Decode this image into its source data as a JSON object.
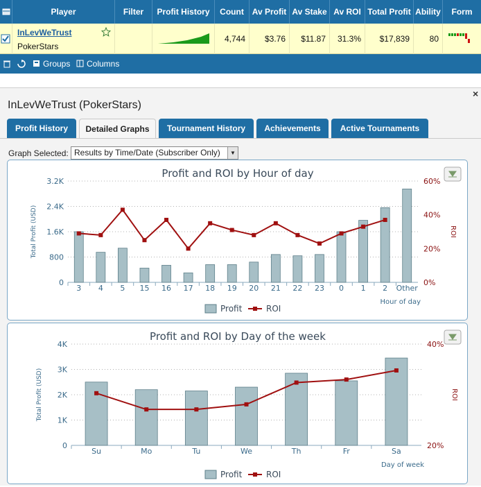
{
  "grid": {
    "headers": [
      "Player",
      "Filter",
      "Profit History",
      "Count",
      "Av Profit",
      "Av Stake",
      "Av ROI",
      "Total Profit",
      "Ability",
      "Form"
    ],
    "row": {
      "player_name": "InLevWeTrust",
      "network": "PokerStars",
      "count": "4,744",
      "av_profit": "$3.76",
      "av_stake": "$11.87",
      "av_roi": "31.3%",
      "total_profit": "$17,839",
      "ability": "80"
    },
    "toolbar": {
      "groups_label": "Groups",
      "columns_label": "Columns"
    }
  },
  "panel": {
    "title": "InLevWeTrust (PokerStars)",
    "close_symbol": "×",
    "tabs": [
      "Profit History",
      "Detailed Graphs",
      "Tournament History",
      "Achievements",
      "Active Tournaments"
    ],
    "graph_selected_label": "Graph Selected:",
    "graph_selected_value": "Results by Time/Date (Subscriber Only)"
  },
  "colors": {
    "header_blue": "#1f6ea4",
    "bar_fill": "#a7bfc6",
    "roi_line": "#a01010",
    "row_highlight": "#ffffcc"
  },
  "chart_data": [
    {
      "type": "bar",
      "title": "Profit and ROI by Hour of day",
      "xlabel": "Hour of day",
      "ylabel": "Total Profit (USD)",
      "y2label": "ROI",
      "categories": [
        "3",
        "4",
        "5",
        "15",
        "16",
        "17",
        "18",
        "19",
        "20",
        "21",
        "22",
        "23",
        "0",
        "1",
        "2",
        "Other"
      ],
      "ylim": [
        0,
        3200
      ],
      "yticks": [
        0,
        800,
        1600,
        2400,
        3200
      ],
      "ytick_labels": [
        "0",
        "800",
        "1.6K",
        "2.4K",
        "3.2K"
      ],
      "y2lim": [
        0,
        60
      ],
      "y2ticks": [
        0,
        20,
        40,
        60
      ],
      "y2tick_labels": [
        "0%",
        "20%",
        "40%",
        "60%"
      ],
      "series": [
        {
          "name": "Profit",
          "kind": "bar",
          "values": [
            1600,
            950,
            1080,
            450,
            540,
            300,
            560,
            560,
            640,
            880,
            840,
            880,
            1600,
            1960,
            2360,
            2950
          ]
        },
        {
          "name": "ROI",
          "kind": "line",
          "values": [
            29,
            28,
            43,
            25,
            37,
            20,
            35,
            31,
            28,
            35,
            28,
            23,
            29,
            33,
            37,
            null
          ]
        }
      ],
      "legend": [
        "Profit",
        "ROI"
      ]
    },
    {
      "type": "bar",
      "title": "Profit and ROI by Day of the week",
      "xlabel": "Day of week",
      "ylabel": "Total Profit (USD)",
      "y2label": "ROI",
      "categories": [
        "Su",
        "Mo",
        "Tu",
        "We",
        "Th",
        "Fr",
        "Sa"
      ],
      "ylim": [
        0,
        4000
      ],
      "yticks": [
        0,
        1000,
        2000,
        3000,
        4000
      ],
      "ytick_labels": [
        "0",
        "1K",
        "2K",
        "3K",
        "4K"
      ],
      "y2lim": [
        20,
        40
      ],
      "y2ticks": [
        20,
        40
      ],
      "y2tick_labels": [
        "20%",
        "40%"
      ],
      "series": [
        {
          "name": "Profit",
          "kind": "bar",
          "values": [
            2500,
            2200,
            2150,
            2300,
            2850,
            2550,
            3450
          ]
        },
        {
          "name": "ROI",
          "kind": "line",
          "values": [
            30.3,
            27.1,
            27.1,
            28.1,
            32.4,
            33.0,
            34.8
          ]
        }
      ],
      "legend": [
        "Profit",
        "ROI"
      ]
    }
  ]
}
